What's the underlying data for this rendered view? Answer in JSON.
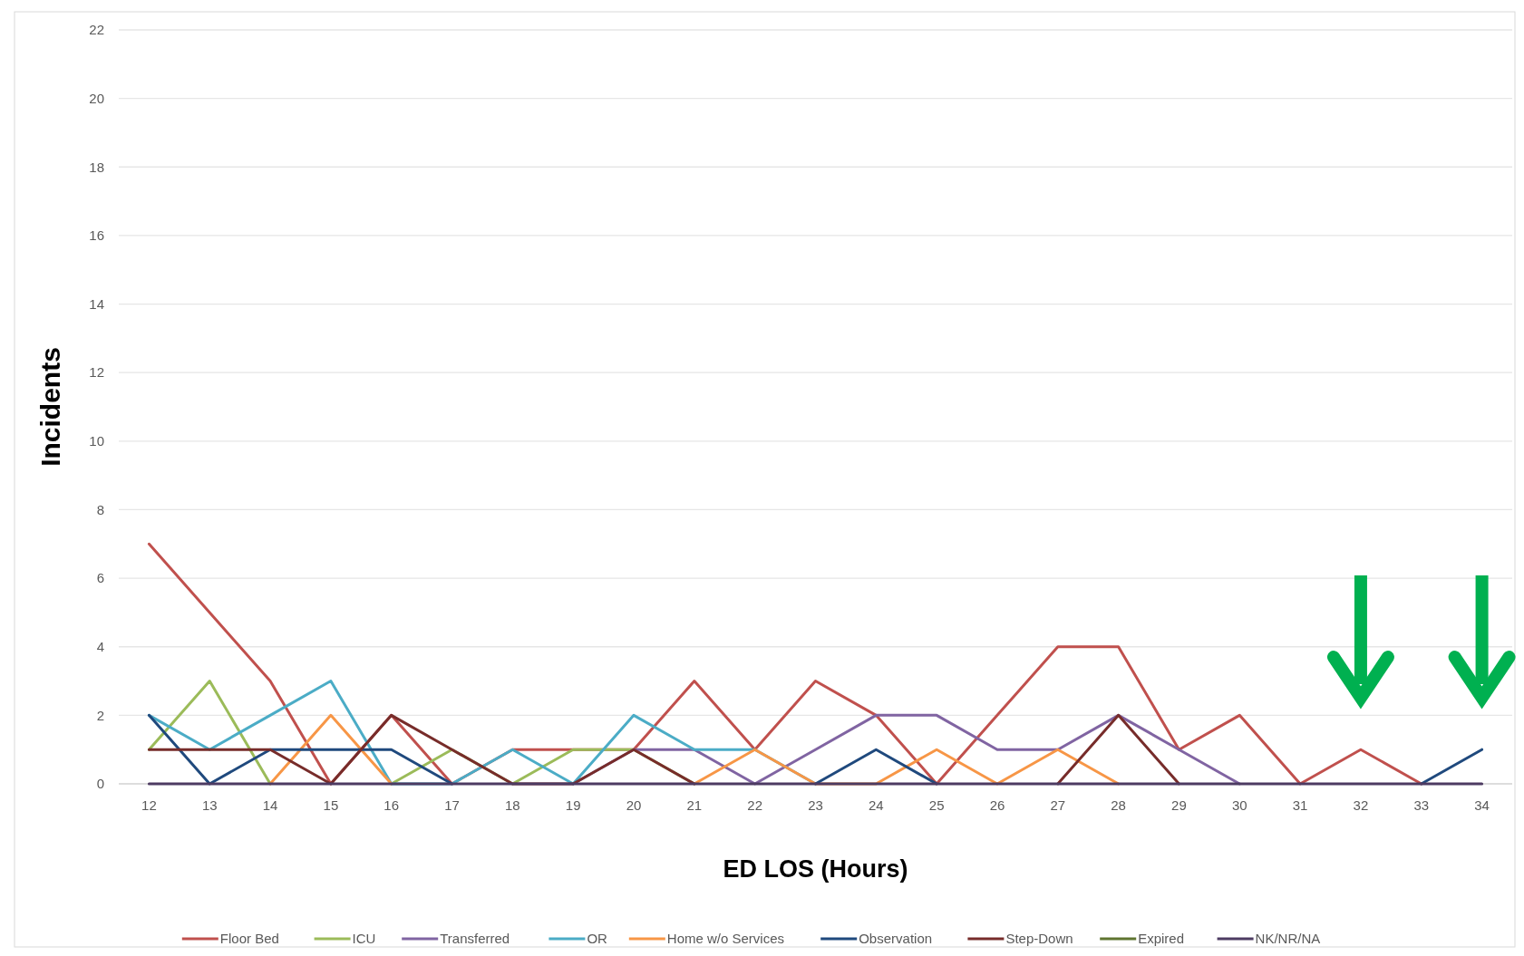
{
  "chart_data": {
    "type": "line",
    "xlabel": "ED LOS (Hours)",
    "ylabel": "Incidents",
    "categories": [
      "12",
      "13",
      "14",
      "15",
      "16",
      "17",
      "18",
      "19",
      "20",
      "21",
      "22",
      "23",
      "24",
      "25",
      "26",
      "27",
      "28",
      "29",
      "30",
      "31",
      "32",
      "33",
      "34"
    ],
    "ylim": [
      0,
      22
    ],
    "yticks": [
      0,
      2,
      4,
      6,
      8,
      10,
      12,
      14,
      16,
      18,
      20,
      22
    ],
    "grid": "y",
    "legend": "bottom",
    "marker": "none",
    "line_style": "solid",
    "series": [
      {
        "name": "Floor Bed",
        "color": "#c0504d",
        "values": [
          7,
          5,
          3,
          0,
          2,
          0,
          1,
          1,
          1,
          3,
          1,
          3,
          2,
          0,
          2,
          4,
          4,
          1,
          2,
          0,
          1,
          0,
          null
        ]
      },
      {
        "name": "ICU",
        "color": "#9bbb59",
        "values": [
          1,
          3,
          0,
          null,
          0,
          1,
          0,
          1,
          1,
          0,
          null,
          null,
          null,
          null,
          null,
          null,
          null,
          null,
          null,
          null,
          null,
          null,
          null
        ]
      },
      {
        "name": "Transferred",
        "color": "#8064a2",
        "values": [
          null,
          null,
          null,
          null,
          null,
          null,
          null,
          0,
          1,
          1,
          0,
          1,
          2,
          2,
          1,
          1,
          2,
          1,
          0,
          null,
          null,
          null,
          null
        ]
      },
      {
        "name": "OR",
        "color": "#4bacc6",
        "values": [
          2,
          1,
          2,
          3,
          0,
          0,
          1,
          0,
          2,
          1,
          1,
          0,
          null,
          null,
          null,
          null,
          null,
          null,
          null,
          null,
          null,
          null,
          null
        ]
      },
      {
        "name": "Home w/o Services",
        "color": "#f79646",
        "values": [
          null,
          null,
          0,
          2,
          0,
          null,
          null,
          null,
          null,
          0,
          1,
          0,
          0,
          1,
          0,
          1,
          0,
          null,
          null,
          null,
          null,
          null,
          null
        ]
      },
      {
        "name": "Observation",
        "color": "#1f497d",
        "values": [
          2,
          0,
          1,
          1,
          1,
          0,
          null,
          null,
          null,
          null,
          null,
          0,
          1,
          0,
          null,
          null,
          null,
          null,
          null,
          null,
          null,
          0,
          1
        ]
      },
      {
        "name": "Step-Down",
        "color": "#772c2a",
        "values": [
          1,
          1,
          1,
          0,
          2,
          1,
          0,
          0,
          1,
          0,
          null,
          null,
          null,
          null,
          null,
          0,
          2,
          0,
          null,
          null,
          null,
          null,
          null
        ]
      },
      {
        "name": "Expired",
        "color": "#5f7530",
        "values": [
          null,
          null,
          null,
          null,
          null,
          null,
          null,
          null,
          null,
          null,
          null,
          null,
          null,
          null,
          null,
          null,
          null,
          null,
          null,
          null,
          null,
          null,
          null
        ]
      },
      {
        "name": "NK/NR/NA",
        "color": "#4d3b62",
        "values": [
          0,
          0,
          0,
          0,
          0,
          0,
          0,
          0,
          0,
          0,
          0,
          0,
          0,
          0,
          0,
          0,
          0,
          0,
          0,
          0,
          0,
          0,
          0
        ]
      }
    ]
  }
}
